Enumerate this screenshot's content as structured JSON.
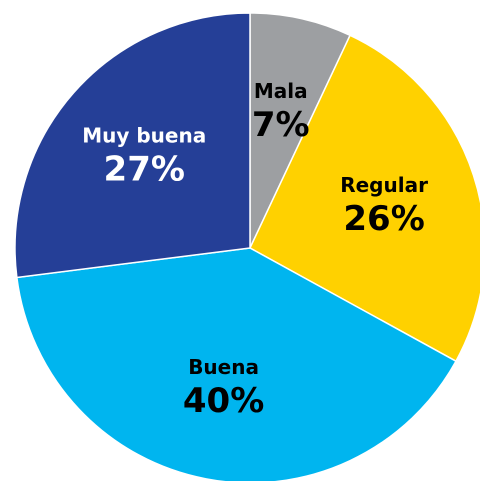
{
  "chart_data": {
    "type": "pie",
    "categories": [
      "Mala",
      "Regular",
      "Buena",
      "Muy buena"
    ],
    "values": [
      7,
      26,
      40,
      27
    ],
    "value_labels": [
      "7%",
      "26%",
      "40%",
      "27%"
    ],
    "colors": [
      "#9d9fa2",
      "#ffd100",
      "#00b5ef",
      "#253f97"
    ]
  }
}
